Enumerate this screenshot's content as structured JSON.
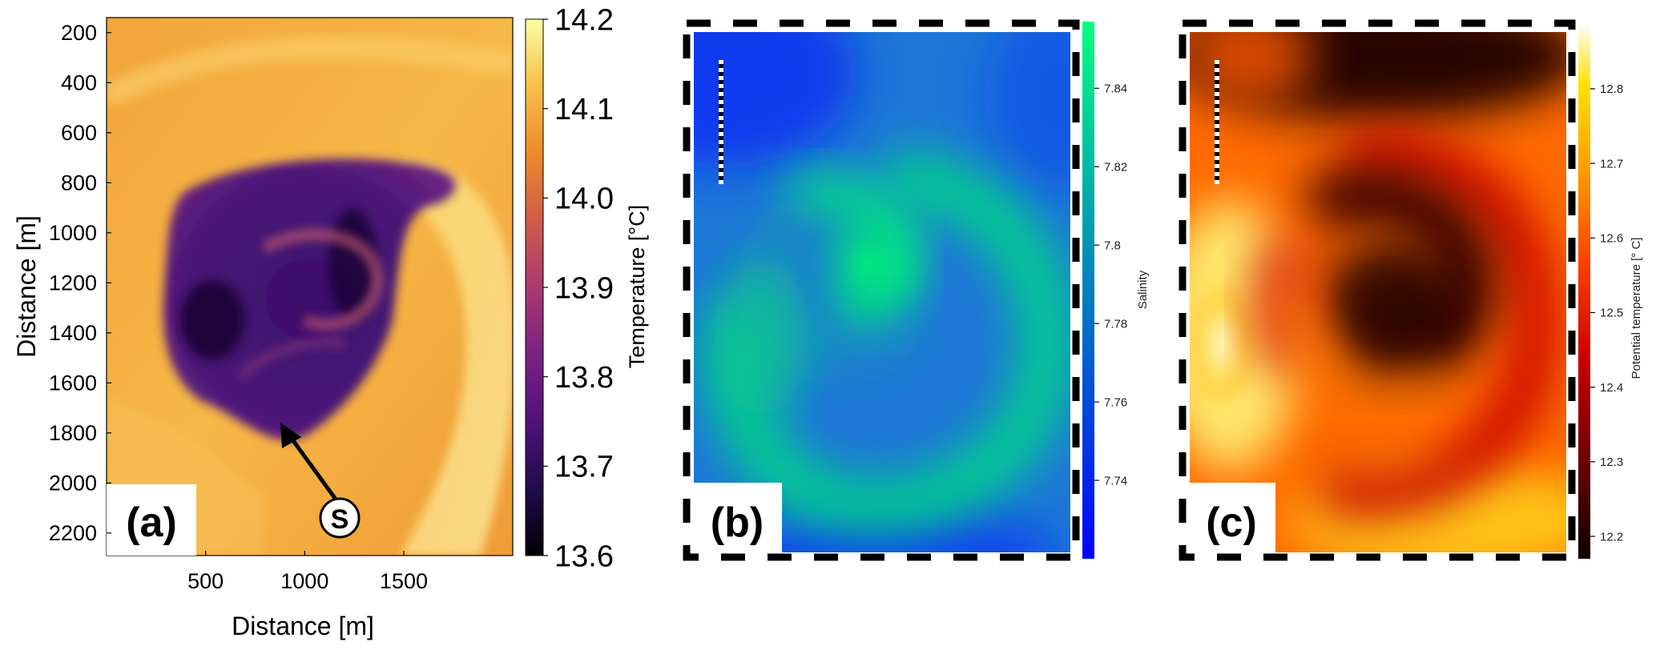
{
  "chart_data": [
    {
      "type": "heatmap",
      "panel_label": "(a)",
      "xlabel": "Distance [m]",
      "ylabel": "Distance [m]",
      "x_ticks": [
        500,
        1000,
        1500
      ],
      "y_ticks": [
        200,
        400,
        600,
        800,
        1000,
        1200,
        1400,
        1600,
        1800,
        2000,
        2200
      ],
      "xlim": [
        0,
        2050
      ],
      "ylim": [
        2290,
        140
      ],
      "colorbar": {
        "label": "Temperature [°C]",
        "range": [
          13.6,
          14.2
        ],
        "ticks": [
          "13.6",
          "13.7",
          "13.8",
          "13.9",
          "14.0",
          "14.1",
          "14.2"
        ],
        "colormap": "inferno"
      },
      "annotation": {
        "text": "S",
        "target_x": 860,
        "target_y": 1750
      }
    },
    {
      "type": "heatmap",
      "panel_label": "(b)",
      "colorbar": {
        "label": "Salinity",
        "range": [
          7.72,
          7.857
        ],
        "ticks": [
          "7.74",
          "7.76",
          "7.78",
          "7.8",
          "7.82",
          "7.84"
        ],
        "colormap": "winter"
      }
    },
    {
      "type": "heatmap",
      "panel_label": "(c)",
      "colorbar": {
        "label": "Potential temperature [° C]",
        "range": [
          12.17,
          12.89
        ],
        "ticks": [
          "12.2",
          "12.3",
          "12.4",
          "12.5",
          "12.6",
          "12.7",
          "12.8"
        ],
        "colormap": "hot"
      }
    }
  ],
  "colors": {
    "inferno": [
      "#000004",
      "#2a0c57",
      "#50127a",
      "#7c2382",
      "#a83a70",
      "#cf5a4c",
      "#ec8a2d",
      "#f8c14a",
      "#fcffa4"
    ],
    "winter": [
      "#0000ff",
      "#00ff80"
    ],
    "hot": [
      "#0a0000",
      "#6a0000",
      "#d00000",
      "#ff4000",
      "#ff9a00",
      "#ffe000",
      "#ffffff"
    ]
  }
}
